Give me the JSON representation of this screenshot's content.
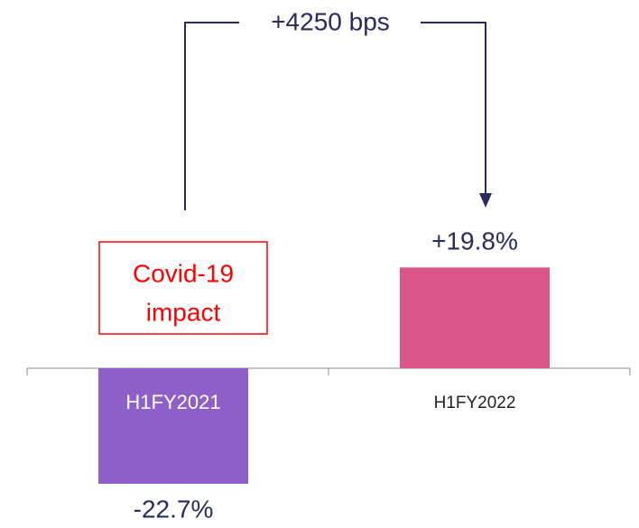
{
  "chart_data": {
    "type": "bar",
    "categories": [
      "H1FY2021",
      "H1FY2022"
    ],
    "values": [
      -22.7,
      19.8
    ],
    "value_labels": [
      "-22.7%",
      "+19.8%"
    ],
    "colors": [
      "#8e5fc8",
      "#d9558a"
    ],
    "ylim": [
      -25,
      25
    ],
    "annotation": "+4250 bps",
    "box_text": [
      "Covid-19",
      "impact"
    ]
  }
}
